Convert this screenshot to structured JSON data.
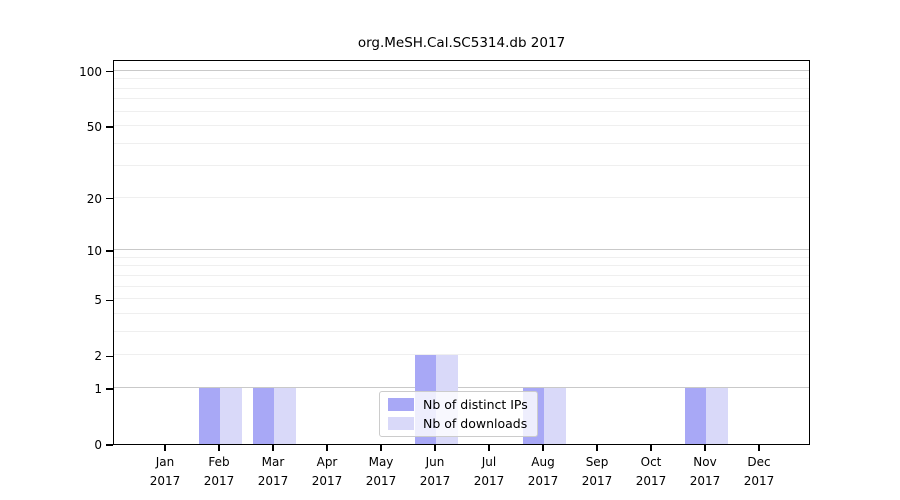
{
  "chart_data": {
    "type": "bar",
    "title": "org.MeSH.Cal.SC5314.db 2017",
    "categories": [
      "Jan 2017",
      "Feb 2017",
      "Mar 2017",
      "Apr 2017",
      "May 2017",
      "Jun 2017",
      "Jul 2017",
      "Aug 2017",
      "Sep 2017",
      "Oct 2017",
      "Nov 2017",
      "Dec 2017"
    ],
    "x_tick_months": [
      "Jan",
      "Feb",
      "Mar",
      "Apr",
      "May",
      "Jun",
      "Jul",
      "Aug",
      "Sep",
      "Oct",
      "Nov",
      "Dec"
    ],
    "x_tick_year": "2017",
    "series": [
      {
        "name": "Nb of distinct IPs",
        "color": "#a8a8f6",
        "values": [
          0,
          1,
          1,
          0,
          0,
          2,
          0,
          1,
          0,
          0,
          1,
          0
        ]
      },
      {
        "name": "Nb of downloads",
        "color": "#d9d9f9",
        "values": [
          0,
          1,
          1,
          0,
          0,
          2,
          0,
          1,
          0,
          0,
          1,
          0
        ]
      }
    ],
    "y_axis": {
      "scale": "log10(1+x)",
      "tick_values": [
        0,
        1,
        2,
        5,
        10,
        20,
        50,
        100
      ],
      "ylim": [
        0,
        116
      ]
    },
    "grid": {
      "major_values": [
        1,
        10,
        100
      ],
      "minor_values": [
        2,
        3,
        4,
        5,
        6,
        7,
        8,
        9,
        20,
        30,
        40,
        50,
        60,
        70,
        80,
        90
      ],
      "major_color": "#c9c9c9",
      "minor_color": "#efefef"
    },
    "legend": {
      "position": "bottom-center",
      "entries": [
        "Nb of distinct IPs",
        "Nb of downloads"
      ]
    }
  }
}
